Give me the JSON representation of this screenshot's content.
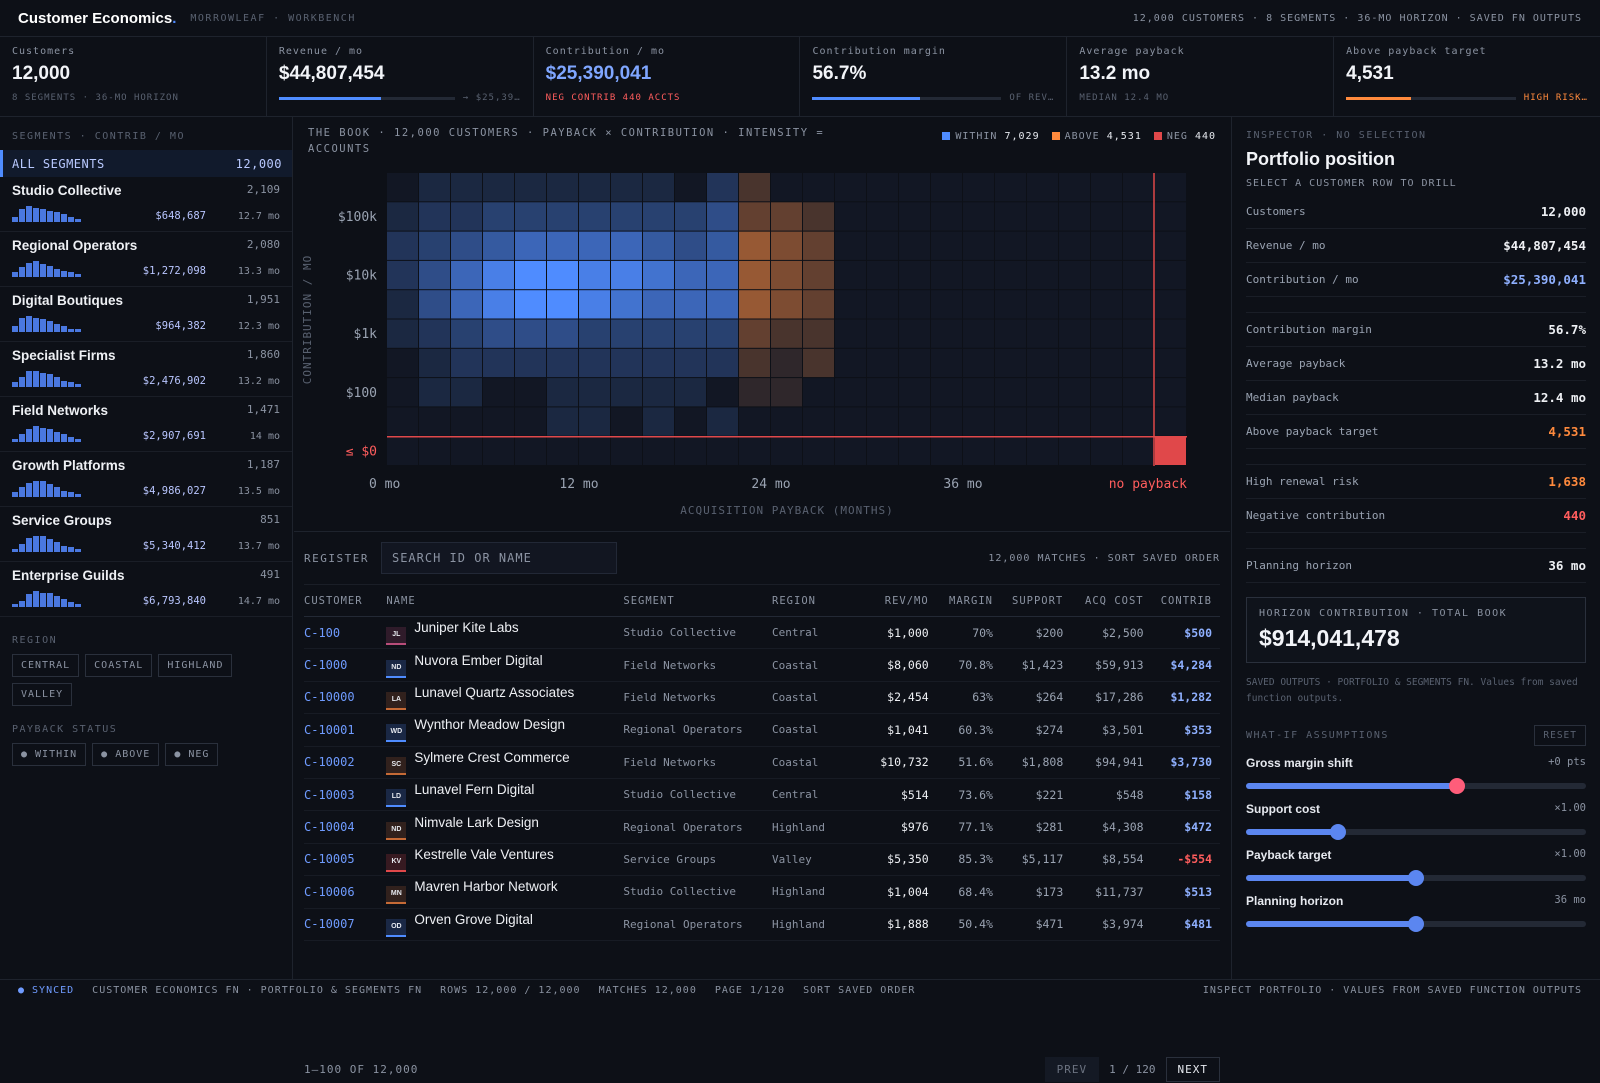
{
  "app": {
    "brand": "Customer Economics",
    "brand_dot": ".",
    "subtitle": "MORROWLEAF · WORKBENCH",
    "summary": "12,000 CUSTOMERS · 8 SEGMENTS · 36-MO HORIZON · SAVED FN OUTPUTS"
  },
  "kpis": [
    {
      "label": "Customers",
      "value": "12,000",
      "sub": "8 SEGMENTS · 36-MO HORIZON"
    },
    {
      "label": "Revenue / mo",
      "value": "$44,807,454",
      "sub": "→ $25,39…",
      "progress": 0.58
    },
    {
      "label": "Contribution / mo",
      "value": "$25,390,041",
      "sub": "NEG CONTRIB 440 ACCTS"
    },
    {
      "label": "Contribution margin",
      "value": "56.7%",
      "sub": "OF REV…",
      "progress": 0.567
    },
    {
      "label": "Average payback",
      "value": "13.2 mo",
      "sub": "MEDIAN 12.4 MO"
    },
    {
      "label": "Above payback target",
      "value": "4,531",
      "sub": "HIGH RISK…",
      "progress": 0.38
    }
  ],
  "sidebar": {
    "title": "SEGMENTS · CONTRIB / MO",
    "all": {
      "label": "ALL SEGMENTS",
      "count": "12,000"
    },
    "segments": [
      {
        "name": "Studio Collective",
        "count": "2,109",
        "contrib": "$648,687",
        "payback": "12.7 mo",
        "spark": [
          3,
          8,
          10,
          9,
          8,
          7,
          6,
          5,
          3,
          2
        ]
      },
      {
        "name": "Regional Operators",
        "count": "2,080",
        "contrib": "$1,272,098",
        "payback": "13.3 mo",
        "spark": [
          3,
          6,
          9,
          10,
          8,
          7,
          5,
          4,
          3,
          2
        ]
      },
      {
        "name": "Digital Boutiques",
        "count": "1,951",
        "contrib": "$964,382",
        "payback": "12.3 mo",
        "spark": [
          4,
          9,
          10,
          9,
          8,
          7,
          5,
          4,
          2,
          2
        ]
      },
      {
        "name": "Specialist Firms",
        "count": "1,860",
        "contrib": "$2,476,902",
        "payback": "13.2 mo",
        "spark": [
          3,
          6,
          10,
          10,
          9,
          8,
          6,
          4,
          3,
          2
        ]
      },
      {
        "name": "Field Networks",
        "count": "1,471",
        "contrib": "$2,907,691",
        "payback": "14 mo",
        "spark": [
          2,
          5,
          8,
          10,
          9,
          8,
          6,
          5,
          3,
          2
        ]
      },
      {
        "name": "Growth Platforms",
        "count": "1,187",
        "contrib": "$4,986,027",
        "payback": "13.5 mo",
        "spark": [
          3,
          6,
          9,
          10,
          10,
          8,
          6,
          4,
          3,
          2
        ]
      },
      {
        "name": "Service Groups",
        "count": "851",
        "contrib": "$5,340,412",
        "payback": "13.7 mo",
        "spark": [
          2,
          5,
          9,
          10,
          10,
          8,
          6,
          4,
          3,
          2
        ]
      },
      {
        "name": "Enterprise Guilds",
        "count": "491",
        "contrib": "$6,793,840",
        "payback": "14.7 mo",
        "spark": [
          2,
          4,
          8,
          10,
          9,
          9,
          7,
          5,
          3,
          2
        ]
      }
    ],
    "region_title": "REGION",
    "regions": [
      "CENTRAL",
      "COASTAL",
      "HIGHLAND",
      "VALLEY"
    ],
    "payback_title": "PAYBACK STATUS",
    "payback": [
      "● WITHIN",
      "● ABOVE",
      "● NEG"
    ]
  },
  "chart_data": {
    "type": "heatmap",
    "title": "THE BOOK · 12,000 CUSTOMERS · PAYBACK × CONTRIBUTION · INTENSITY = ACCOUNTS",
    "xlabel": "ACQUISITION PAYBACK (MONTHS)",
    "ylabel": "CONTRIBUTION / MO",
    "x_ticks": [
      "0 mo",
      "12 mo",
      "24 mo",
      "36 mo",
      "no payback"
    ],
    "y_ticks": [
      "$100k",
      "$10k",
      "$1k",
      "$100",
      "≤ $0"
    ],
    "legend": [
      {
        "name": "WITHIN",
        "value": "7,029",
        "color": "#4f8cff"
      },
      {
        "name": "ABOVE",
        "value": "4,531",
        "color": "#ff8a3d"
      },
      {
        "name": "NEG",
        "value": "440",
        "color": "#e0484a"
      }
    ],
    "target_col": 11,
    "intensity": [
      [
        0,
        1,
        1,
        1,
        1,
        1,
        1,
        1,
        1,
        0,
        2,
        2,
        0,
        0,
        0,
        0,
        0,
        0,
        0,
        0,
        0,
        0,
        0,
        0,
        0
      ],
      [
        1,
        2,
        2,
        3,
        3,
        3,
        3,
        3,
        3,
        3,
        4,
        3,
        3,
        2,
        0,
        0,
        0,
        0,
        0,
        0,
        0,
        0,
        0,
        0,
        0
      ],
      [
        2,
        3,
        4,
        5,
        6,
        6,
        6,
        6,
        5,
        4,
        5,
        5,
        4,
        3,
        0,
        0,
        0,
        0,
        0,
        0,
        0,
        0,
        0,
        0,
        0
      ],
      [
        2,
        4,
        6,
        8,
        9,
        9,
        8,
        8,
        7,
        6,
        6,
        5,
        4,
        3,
        0,
        0,
        0,
        0,
        0,
        0,
        0,
        0,
        0,
        0,
        0
      ],
      [
        1,
        4,
        6,
        8,
        9,
        9,
        8,
        7,
        6,
        6,
        6,
        5,
        4,
        3,
        0,
        0,
        0,
        0,
        0,
        0,
        0,
        0,
        0,
        0,
        0
      ],
      [
        1,
        2,
        3,
        4,
        4,
        4,
        3,
        3,
        3,
        3,
        3,
        3,
        2,
        2,
        0,
        0,
        0,
        0,
        0,
        0,
        0,
        0,
        0,
        0,
        0
      ],
      [
        0,
        1,
        2,
        2,
        2,
        2,
        2,
        2,
        2,
        2,
        2,
        2,
        1,
        2,
        0,
        0,
        0,
        0,
        0,
        0,
        0,
        0,
        0,
        0,
        0
      ],
      [
        0,
        1,
        1,
        0,
        0,
        1,
        1,
        1,
        1,
        1,
        0,
        1,
        1,
        0,
        0,
        0,
        0,
        0,
        0,
        0,
        0,
        0,
        0,
        0,
        0
      ],
      [
        0,
        0,
        0,
        0,
        0,
        1,
        1,
        0,
        1,
        0,
        1,
        0,
        0,
        0,
        0,
        0,
        0,
        0,
        0,
        0,
        0,
        0,
        0,
        0,
        0
      ]
    ],
    "neg_bin_intensity": 9
  },
  "register": {
    "label": "REGISTER",
    "search_placeholder": "SEARCH ID OR NAME",
    "meta": "12,000 MATCHES · SORT SAVED ORDER",
    "columns": [
      "CUSTOMER",
      "NAME",
      "SEGMENT",
      "REGION",
      "REV/MO",
      "MARGIN",
      "SUPPORT",
      "ACQ COST",
      "CONTRIB"
    ],
    "rows": [
      {
        "id": "C-100",
        "ini": "JL",
        "color": "#b84d7a",
        "name": "Juniper Kite Labs",
        "segment": "Studio Collective",
        "region": "Central",
        "rev": "$1,000",
        "margin": "70%",
        "support": "$200",
        "acq": "$2,500",
        "contrib": "$500",
        "neg": false
      },
      {
        "id": "C-1000",
        "ini": "ND",
        "color": "#4f8cff",
        "name": "Nuvora Ember Digital",
        "segment": "Field Networks",
        "region": "Coastal",
        "rev": "$8,060",
        "margin": "70.8%",
        "support": "$1,423",
        "acq": "$59,913",
        "contrib": "$4,284",
        "neg": false
      },
      {
        "id": "C-10000",
        "ini": "LA",
        "color": "#c56a36",
        "name": "Lunavel Quartz Associates",
        "segment": "Field Networks",
        "region": "Coastal",
        "rev": "$2,454",
        "margin": "63%",
        "support": "$264",
        "acq": "$17,286",
        "contrib": "$1,282",
        "neg": false
      },
      {
        "id": "C-10001",
        "ini": "WD",
        "color": "#4f8cff",
        "name": "Wynthor Meadow Design",
        "segment": "Regional Operators",
        "region": "Coastal",
        "rev": "$1,041",
        "margin": "60.3%",
        "support": "$274",
        "acq": "$3,501",
        "contrib": "$353",
        "neg": false
      },
      {
        "id": "C-10002",
        "ini": "SC",
        "color": "#c56a36",
        "name": "Sylmere Crest Commerce",
        "segment": "Field Networks",
        "region": "Coastal",
        "rev": "$10,732",
        "margin": "51.6%",
        "support": "$1,808",
        "acq": "$94,941",
        "contrib": "$3,730",
        "neg": false
      },
      {
        "id": "C-10003",
        "ini": "LD",
        "color": "#4f8cff",
        "name": "Lunavel Fern Digital",
        "segment": "Studio Collective",
        "region": "Central",
        "rev": "$514",
        "margin": "73.6%",
        "support": "$221",
        "acq": "$548",
        "contrib": "$158",
        "neg": false
      },
      {
        "id": "C-10004",
        "ini": "ND",
        "color": "#c56a36",
        "name": "Nimvale Lark Design",
        "segment": "Regional Operators",
        "region": "Highland",
        "rev": "$976",
        "margin": "77.1%",
        "support": "$281",
        "acq": "$4,308",
        "contrib": "$472",
        "neg": false
      },
      {
        "id": "C-10005",
        "ini": "KV",
        "color": "#e0484a",
        "name": "Kestrelle Vale Ventures",
        "segment": "Service Groups",
        "region": "Valley",
        "rev": "$5,350",
        "margin": "85.3%",
        "support": "$5,117",
        "acq": "$8,554",
        "contrib": "-$554",
        "neg": true
      },
      {
        "id": "C-10006",
        "ini": "MN",
        "color": "#c56a36",
        "name": "Mavren Harbor Network",
        "segment": "Studio Collective",
        "region": "Highland",
        "rev": "$1,004",
        "margin": "68.4%",
        "support": "$173",
        "acq": "$11,737",
        "contrib": "$513",
        "neg": false
      },
      {
        "id": "C-10007",
        "ini": "OD",
        "color": "#4f8cff",
        "name": "Orven Grove Digital",
        "segment": "Regional Operators",
        "region": "Highland",
        "rev": "$1,888",
        "margin": "50.4%",
        "support": "$471",
        "acq": "$3,974",
        "contrib": "$481",
        "neg": false
      }
    ],
    "range": "1–100 OF 12,000",
    "prev": "PREV",
    "page": "1 / 120",
    "next": "NEXT"
  },
  "inspector": {
    "title": "INSPECTOR · NO SELECTION",
    "heading": "Portfolio position",
    "hint": "SELECT A CUSTOMER ROW TO DRILL",
    "group1": [
      {
        "k": "Customers",
        "v": "12,000",
        "c": "#eef0f4"
      },
      {
        "k": "Revenue / mo",
        "v": "$44,807,454",
        "c": "#eef0f4"
      },
      {
        "k": "Contribution / mo",
        "v": "$25,390,041",
        "c": "#8fb0ff"
      }
    ],
    "group2": [
      {
        "k": "Contribution margin",
        "v": "56.7%",
        "c": "#eef0f4"
      },
      {
        "k": "Average payback",
        "v": "13.2 mo",
        "c": "#eef0f4"
      },
      {
        "k": "Median payback",
        "v": "12.4 mo",
        "c": "#eef0f4"
      },
      {
        "k": "Above payback target",
        "v": "4,531",
        "c": "#ff8a3d"
      }
    ],
    "group3": [
      {
        "k": "High renewal risk",
        "v": "1,638",
        "c": "#ff8a3d"
      },
      {
        "k": "Negative contribution",
        "v": "440",
        "c": "#ff5d5d"
      }
    ],
    "group4": [
      {
        "k": "Planning horizon",
        "v": "36 mo",
        "c": "#eef0f4"
      }
    ],
    "horizon_label": "HORIZON CONTRIBUTION · TOTAL BOOK",
    "horizon_value": "$914,041,478",
    "note": "SAVED OUTPUTS · PORTFOLIO & SEGMENTS FN. Values from saved function outputs.",
    "whatif_title": "WHAT-IF ASSUMPTIONS",
    "reset": "RESET",
    "sliders": [
      {
        "label": "Gross margin shift",
        "value": "+0 pts",
        "level": 0.62,
        "knob": "#ff5d7a"
      },
      {
        "label": "Support cost",
        "value": "×1.00",
        "level": 0.27,
        "knob": "#5b86f0"
      },
      {
        "label": "Payback target",
        "value": "×1.00",
        "level": 0.5,
        "knob": "#5b86f0"
      },
      {
        "label": "Planning horizon",
        "value": "36 mo",
        "level": 0.5,
        "knob": "#5b86f0"
      }
    ]
  },
  "statusbar": {
    "sync": "● SYNCED",
    "items": [
      "CUSTOMER ECONOMICS FN · PORTFOLIO & SEGMENTS FN",
      "ROWS 12,000 / 12,000",
      "MATCHES 12,000",
      "PAGE 1/120",
      "SORT SAVED ORDER"
    ],
    "right": "INSPECT PORTFOLIO · VALUES FROM SAVED FUNCTION OUTPUTS"
  }
}
